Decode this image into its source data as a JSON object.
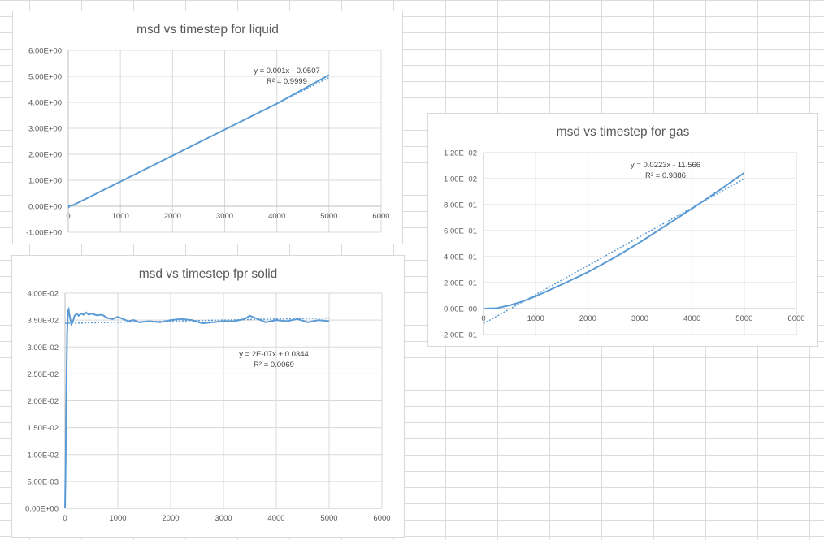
{
  "chart_data": [
    {
      "id": "liquid",
      "type": "line",
      "title": "msd vs timestep for liquid",
      "x_ticks": [
        "0",
        "1000",
        "2000",
        "3000",
        "4000",
        "5000",
        "6000"
      ],
      "y_ticks": [
        "-1.00E+00",
        "0.00E+00",
        "1.00E+00",
        "2.00E+00",
        "3.00E+00",
        "4.00E+00",
        "5.00E+00",
        "6.00E+00"
      ],
      "xlim": [
        0,
        6000
      ],
      "ylim": [
        -1,
        6
      ],
      "grid": true,
      "series": [
        {
          "x": [
            0,
            100,
            250,
            500,
            1000,
            1500,
            2000,
            2500,
            3000,
            3500,
            4000,
            4500,
            5000
          ],
          "y": [
            0,
            0.05,
            0.2,
            0.45,
            0.95,
            1.45,
            1.95,
            2.45,
            2.95,
            3.45,
            3.95,
            4.5,
            5.05
          ]
        }
      ],
      "trendline": {
        "equation": "y = 0.001x - 0.0507",
        "r2": "R² = 0.9999",
        "slope": 0.001,
        "intercept": -0.0507,
        "x_range": [
          0,
          5000
        ]
      }
    },
    {
      "id": "gas",
      "type": "line",
      "title": "msd vs timestep for gas",
      "x_ticks": [
        "0",
        "1000",
        "2000",
        "3000",
        "4000",
        "5000",
        "6000"
      ],
      "y_ticks": [
        "-2.00E+01",
        "0.00E+00",
        "2.00E+01",
        "4.00E+01",
        "6.00E+01",
        "8.00E+01",
        "1.00E+02",
        "1.20E+02"
      ],
      "xlim": [
        0,
        6000
      ],
      "ylim": [
        -20,
        120
      ],
      "grid": true,
      "series": [
        {
          "x": [
            0,
            250,
            500,
            750,
            1000,
            1500,
            2000,
            2500,
            3000,
            3500,
            4000,
            4500,
            5000
          ],
          "y": [
            0,
            0.3,
            2.5,
            5.5,
            9.5,
            18.5,
            28,
            39,
            51,
            64,
            77,
            90.5,
            104.5
          ]
        }
      ],
      "trendline": {
        "equation": "y = 0.0223x - 11.566",
        "r2": "R² = 0.9886",
        "slope": 0.0223,
        "intercept": -11.566,
        "x_range": [
          0,
          5000
        ]
      }
    },
    {
      "id": "solid",
      "type": "line",
      "title": "msd vs timestep fpr solid",
      "x_ticks": [
        "0",
        "1000",
        "2000",
        "3000",
        "4000",
        "5000",
        "6000"
      ],
      "y_ticks": [
        "0.00E+00",
        "5.00E-03",
        "1.00E-02",
        "1.50E-02",
        "2.00E-02",
        "2.50E-02",
        "3.00E-02",
        "3.50E-02",
        "4.00E-02"
      ],
      "xlim": [
        0,
        6000
      ],
      "ylim": [
        0,
        0.04
      ],
      "grid": true,
      "series": [
        {
          "x": [
            0,
            10,
            20,
            30,
            40,
            50,
            60,
            70,
            80,
            100,
            120,
            150,
            180,
            220,
            260,
            300,
            350,
            400,
            450,
            500,
            600,
            700,
            800,
            900,
            1000,
            1100,
            1200,
            1300,
            1400,
            1600,
            1800,
            2000,
            2200,
            2400,
            2600,
            2800,
            3000,
            3200,
            3400,
            3500,
            3600,
            3700,
            3800,
            4000,
            4200,
            4400,
            4600,
            4800,
            5000
          ],
          "y": [
            0,
            0.0075,
            0.016,
            0.0255,
            0.0325,
            0.0355,
            0.0368,
            0.037,
            0.0362,
            0.0352,
            0.0342,
            0.0348,
            0.0358,
            0.0362,
            0.0358,
            0.0362,
            0.036,
            0.0364,
            0.036,
            0.0362,
            0.0359,
            0.036,
            0.0354,
            0.0352,
            0.0356,
            0.0352,
            0.0348,
            0.035,
            0.0346,
            0.0348,
            0.0346,
            0.035,
            0.0352,
            0.035,
            0.0344,
            0.0346,
            0.0348,
            0.0348,
            0.0352,
            0.0358,
            0.0354,
            0.035,
            0.0346,
            0.035,
            0.0348,
            0.0352,
            0.0346,
            0.035,
            0.0348
          ]
        }
      ],
      "trendline": {
        "equation": "y = 2E-07x + 0.0344",
        "r2": "R² = 0.0069",
        "slope": 2e-07,
        "intercept": 0.0344,
        "x_range": [
          0,
          5000
        ]
      }
    }
  ]
}
